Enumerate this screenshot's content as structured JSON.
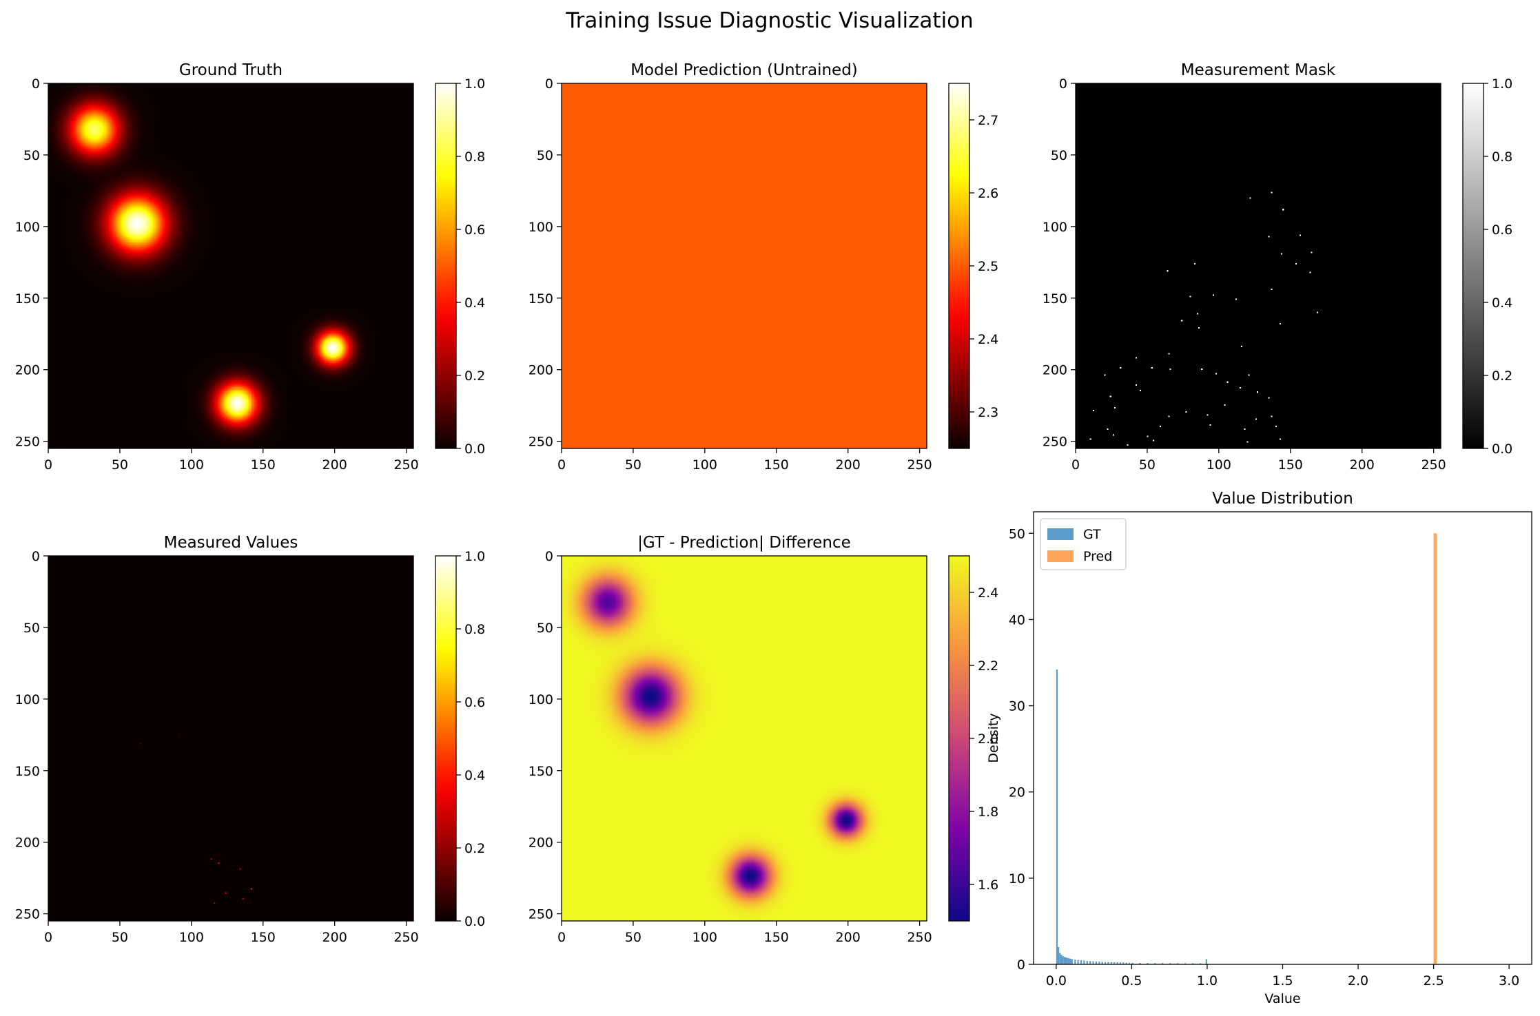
{
  "suptitle": "Training Issue Diagnostic Visualization",
  "colors": {
    "gt": "#5b9bc9",
    "pred": "#ffa65a",
    "pred_fill": "#ff5f00",
    "axes": "#000000"
  },
  "chart_data": [
    {
      "id": "gt",
      "type": "heatmap",
      "title": "Ground Truth",
      "colormap": "hot",
      "xlim": [
        0,
        255
      ],
      "ylim": [
        255,
        0
      ],
      "x_ticks": [
        0,
        50,
        100,
        150,
        200,
        250
      ],
      "y_ticks": [
        0,
        50,
        100,
        150,
        200,
        250
      ],
      "colorbar": {
        "min": 0.0,
        "max": 1.0,
        "ticks": [
          "0.0",
          "0.2",
          "0.4",
          "0.6",
          "0.8",
          "1.0"
        ]
      },
      "blobs": [
        {
          "x": 32,
          "y": 32,
          "sigma": 12,
          "amp": 0.85
        },
        {
          "x": 62,
          "y": 98,
          "sigma": 14,
          "amp": 1.0
        },
        {
          "x": 199,
          "y": 185,
          "sigma": 8,
          "amp": 1.0
        },
        {
          "x": 132,
          "y": 224,
          "sigma": 10,
          "amp": 1.0
        }
      ]
    },
    {
      "id": "pred",
      "type": "heatmap",
      "title": "Model Prediction (Untrained)",
      "colormap": "hot",
      "xlim": [
        0,
        255
      ],
      "ylim": [
        255,
        0
      ],
      "x_ticks": [
        0,
        50,
        100,
        150,
        200,
        250
      ],
      "y_ticks": [
        0,
        50,
        100,
        150,
        200,
        250
      ],
      "value": 2.5,
      "colorbar": {
        "min": 2.25,
        "max": 2.75,
        "ticks": [
          "2.3",
          "2.4",
          "2.5",
          "2.6",
          "2.7"
        ],
        "tick_values": [
          2.3,
          2.4,
          2.5,
          2.6,
          2.7
        ]
      }
    },
    {
      "id": "mask",
      "type": "heatmap",
      "title": "Measurement Mask",
      "colormap": "gray",
      "xlim": [
        0,
        255
      ],
      "ylim": [
        255,
        0
      ],
      "x_ticks": [
        0,
        50,
        100,
        150,
        200,
        250
      ],
      "y_ticks": [
        0,
        50,
        100,
        150,
        200,
        250
      ],
      "colorbar": {
        "min": 0.0,
        "max": 1.0,
        "ticks": [
          "0.0",
          "0.2",
          "0.4",
          "0.6",
          "0.8",
          "1.0"
        ]
      },
      "points": [
        [
          137,
          76
        ],
        [
          122,
          80
        ],
        [
          145,
          88
        ],
        [
          135,
          107
        ],
        [
          157,
          106
        ],
        [
          144,
          119
        ],
        [
          165,
          118
        ],
        [
          154,
          126
        ],
        [
          164,
          132
        ],
        [
          83,
          126
        ],
        [
          64,
          131
        ],
        [
          137,
          144
        ],
        [
          96,
          148
        ],
        [
          112,
          151
        ],
        [
          80,
          149
        ],
        [
          85,
          161
        ],
        [
          143,
          168
        ],
        [
          169,
          160
        ],
        [
          74,
          166
        ],
        [
          86,
          171
        ],
        [
          116,
          184
        ],
        [
          65,
          189
        ],
        [
          20,
          204
        ],
        [
          31,
          199
        ],
        [
          42,
          192
        ],
        [
          53,
          199
        ],
        [
          66,
          200
        ],
        [
          88,
          200
        ],
        [
          98,
          203
        ],
        [
          106,
          209
        ],
        [
          121,
          204
        ],
        [
          115,
          213
        ],
        [
          42,
          211
        ],
        [
          24,
          219
        ],
        [
          45,
          215
        ],
        [
          127,
          216
        ],
        [
          27,
          227
        ],
        [
          12,
          229
        ],
        [
          77,
          230
        ],
        [
          104,
          225
        ],
        [
          135,
          220
        ],
        [
          65,
          233
        ],
        [
          92,
          232
        ],
        [
          126,
          235
        ],
        [
          59,
          240
        ],
        [
          94,
          239
        ],
        [
          118,
          242
        ],
        [
          137,
          233
        ],
        [
          140,
          240
        ],
        [
          22,
          242
        ],
        [
          26,
          246
        ],
        [
          50,
          247
        ],
        [
          54,
          250
        ],
        [
          10,
          249
        ],
        [
          36,
          253
        ],
        [
          143,
          249
        ],
        [
          120,
          251
        ]
      ]
    },
    {
      "id": "measured",
      "type": "heatmap",
      "title": "Measured Values",
      "colormap": "hot",
      "xlim": [
        0,
        255
      ],
      "ylim": [
        255,
        0
      ],
      "x_ticks": [
        0,
        50,
        100,
        150,
        200,
        250
      ],
      "y_ticks": [
        0,
        50,
        100,
        150,
        200,
        250
      ],
      "colorbar": {
        "min": 0.0,
        "max": 1.0,
        "ticks": [
          "0.0",
          "0.2",
          "0.4",
          "0.6",
          "0.8",
          "1.0"
        ]
      },
      "points": [
        [
          64,
          131,
          0.08
        ],
        [
          91,
          126,
          0.05
        ],
        [
          119,
          215,
          0.35
        ],
        [
          114,
          212,
          0.25
        ],
        [
          134,
          219,
          0.3
        ],
        [
          142,
          233,
          0.4
        ],
        [
          124,
          236,
          0.3
        ],
        [
          136,
          240,
          0.25
        ],
        [
          116,
          243,
          0.2
        ]
      ]
    },
    {
      "id": "diff",
      "type": "heatmap",
      "title": "|GT - Prediction| Difference",
      "colormap": "plasma",
      "xlim": [
        0,
        255
      ],
      "ylim": [
        255,
        0
      ],
      "x_ticks": [
        0,
        50,
        100,
        150,
        200,
        250
      ],
      "y_ticks": [
        0,
        50,
        100,
        150,
        200,
        250
      ],
      "colorbar": {
        "min": 1.5,
        "max": 2.5,
        "ticks": [
          "1.6",
          "1.8",
          "2.0",
          "2.2",
          "2.4"
        ],
        "tick_values": [
          1.6,
          1.8,
          2.0,
          2.2,
          2.4
        ]
      }
    },
    {
      "id": "hist",
      "type": "bar",
      "title": "Value Distribution",
      "xlabel": "Value",
      "ylabel": "Density",
      "xlim": [
        -0.15,
        3.15
      ],
      "ylim": [
        0,
        52.5
      ],
      "x_ticks": [
        "0.0",
        "0.5",
        "1.0",
        "1.5",
        "2.0",
        "2.5",
        "3.0"
      ],
      "x_tick_values": [
        0.0,
        0.5,
        1.0,
        1.5,
        2.0,
        2.5,
        3.0
      ],
      "y_ticks": [
        "0",
        "10",
        "20",
        "30",
        "40",
        "50"
      ],
      "y_tick_values": [
        0,
        10,
        20,
        30,
        40,
        50
      ],
      "legend_position": "upper-left",
      "series": [
        {
          "name": "GT",
          "bin_width": 0.01,
          "bins": [
            [
              0.0,
              34.2
            ],
            [
              0.01,
              2.0
            ],
            [
              0.02,
              1.3
            ],
            [
              0.03,
              1.1
            ],
            [
              0.04,
              0.95
            ],
            [
              0.05,
              0.85
            ],
            [
              0.06,
              0.8
            ],
            [
              0.07,
              0.75
            ],
            [
              0.08,
              0.7
            ],
            [
              0.09,
              0.65
            ],
            [
              0.1,
              0.6
            ],
            [
              0.12,
              0.55
            ],
            [
              0.14,
              0.5
            ],
            [
              0.16,
              0.47
            ],
            [
              0.18,
              0.44
            ],
            [
              0.2,
              0.41
            ],
            [
              0.22,
              0.38
            ],
            [
              0.24,
              0.36
            ],
            [
              0.26,
              0.34
            ],
            [
              0.28,
              0.32
            ],
            [
              0.3,
              0.3
            ],
            [
              0.32,
              0.28
            ],
            [
              0.34,
              0.27
            ],
            [
              0.36,
              0.26
            ],
            [
              0.38,
              0.25
            ],
            [
              0.4,
              0.24
            ],
            [
              0.42,
              0.22
            ],
            [
              0.44,
              0.21
            ],
            [
              0.46,
              0.2
            ],
            [
              0.48,
              0.19
            ],
            [
              0.5,
              0.18
            ],
            [
              0.55,
              0.17
            ],
            [
              0.6,
              0.16
            ],
            [
              0.65,
              0.15
            ],
            [
              0.7,
              0.15
            ],
            [
              0.75,
              0.14
            ],
            [
              0.8,
              0.14
            ],
            [
              0.85,
              0.13
            ],
            [
              0.9,
              0.13
            ],
            [
              0.95,
              0.13
            ],
            [
              0.99,
              0.6
            ]
          ]
        },
        {
          "name": "Pred",
          "bin_width": 0.02,
          "bins": [
            [
              2.5,
              50.0
            ]
          ]
        }
      ]
    }
  ]
}
